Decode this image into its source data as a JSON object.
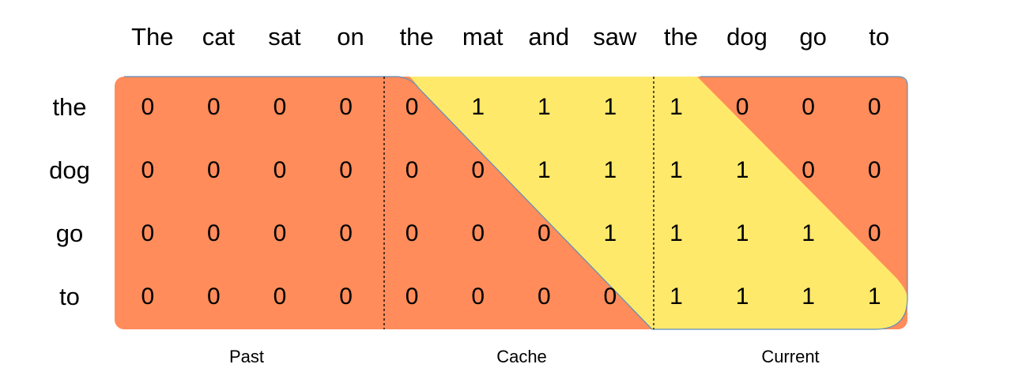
{
  "tokens": [
    "The",
    "cat",
    "sat",
    "on",
    "the",
    "mat",
    "and",
    "saw",
    "the",
    "dog",
    "go",
    "to"
  ],
  "rows": [
    {
      "label": "the",
      "values": [
        0,
        0,
        0,
        0,
        0,
        1,
        1,
        1,
        1,
        0,
        0,
        0
      ]
    },
    {
      "label": "dog",
      "values": [
        0,
        0,
        0,
        0,
        0,
        0,
        1,
        1,
        1,
        1,
        0,
        0
      ]
    },
    {
      "label": "go",
      "values": [
        0,
        0,
        0,
        0,
        0,
        0,
        0,
        1,
        1,
        1,
        1,
        0
      ]
    },
    {
      "label": "to",
      "values": [
        0,
        0,
        0,
        0,
        0,
        0,
        0,
        0,
        1,
        1,
        1,
        1
      ]
    }
  ],
  "sections": [
    {
      "label": "Past"
    },
    {
      "label": "Cache"
    },
    {
      "label": "Current"
    }
  ],
  "colors": {
    "masked": "#ff8c5a",
    "attended": "#ffe96b",
    "outline": "#5a8fbf",
    "divider": "#000000"
  }
}
